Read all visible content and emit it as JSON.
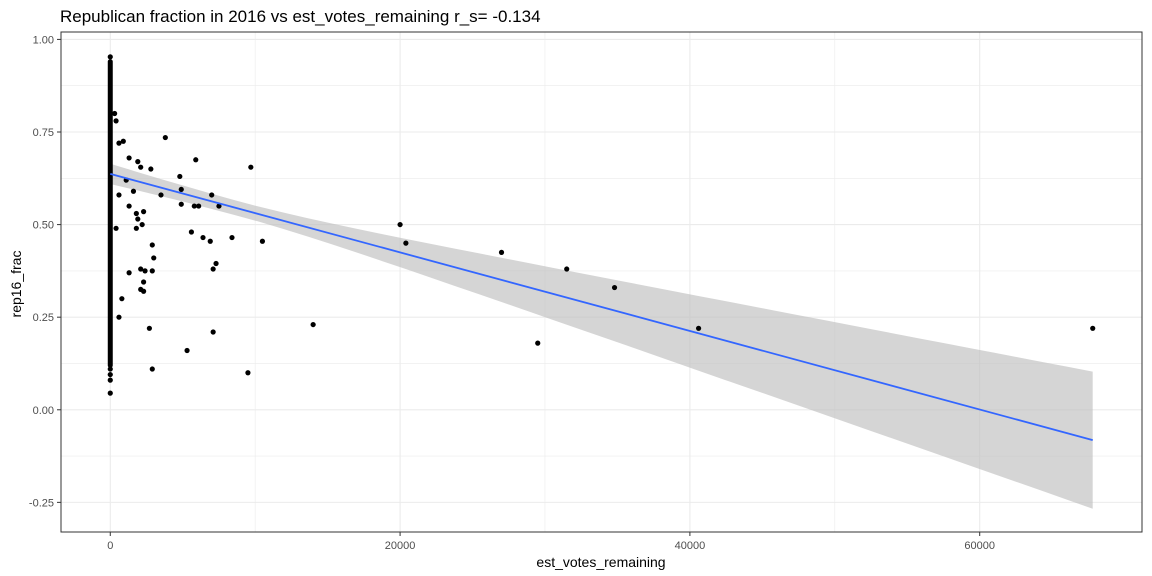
{
  "chart_data": {
    "type": "scatter",
    "title": "Republican fraction in 2016 vs est_votes_remaining  r_s= -0.134",
    "xlabel": "est_votes_remaining",
    "ylabel": "rep16_frac",
    "xlim": [
      -3400,
      71200
    ],
    "ylim": [
      -0.33,
      1.02
    ],
    "x_ticks": [
      0,
      20000,
      40000,
      60000
    ],
    "x_tick_labels": [
      "0",
      "20000",
      "40000",
      "60000"
    ],
    "y_ticks": [
      -0.25,
      0,
      0.25,
      0.5,
      0.75,
      1.0
    ],
    "y_tick_labels": [
      "-0.25",
      "0.00",
      "0.25",
      "0.50",
      "0.75",
      "1.00"
    ],
    "grid": true,
    "legend": "none",
    "colors": {
      "points": "#000000",
      "fit_line": "#3366FF",
      "ribbon": "#BFBFBF",
      "grid": "#EBEBEB",
      "panel_border": "#333333"
    },
    "zero_column": {
      "x": 0,
      "y_min": 0.12,
      "y_max": 0.94,
      "extra_y": [
        0.953,
        0.11,
        0.095,
        0.08,
        0.045
      ]
    },
    "points": [
      {
        "x": 300,
        "y": 0.8
      },
      {
        "x": 400,
        "y": 0.78
      },
      {
        "x": 600,
        "y": 0.72
      },
      {
        "x": 900,
        "y": 0.725
      },
      {
        "x": 600,
        "y": 0.58
      },
      {
        "x": 1100,
        "y": 0.62
      },
      {
        "x": 1300,
        "y": 0.68
      },
      {
        "x": 1300,
        "y": 0.55
      },
      {
        "x": 1600,
        "y": 0.59
      },
      {
        "x": 1900,
        "y": 0.67
      },
      {
        "x": 2100,
        "y": 0.655
      },
      {
        "x": 2800,
        "y": 0.65
      },
      {
        "x": 3800,
        "y": 0.735
      },
      {
        "x": 5900,
        "y": 0.675
      },
      {
        "x": 1800,
        "y": 0.53
      },
      {
        "x": 2300,
        "y": 0.535
      },
      {
        "x": 1900,
        "y": 0.515
      },
      {
        "x": 1800,
        "y": 0.49
      },
      {
        "x": 2200,
        "y": 0.5
      },
      {
        "x": 400,
        "y": 0.49
      },
      {
        "x": 2900,
        "y": 0.445
      },
      {
        "x": 3000,
        "y": 0.41
      },
      {
        "x": 1300,
        "y": 0.37
      },
      {
        "x": 2100,
        "y": 0.38
      },
      {
        "x": 2400,
        "y": 0.375
      },
      {
        "x": 2900,
        "y": 0.375
      },
      {
        "x": 2300,
        "y": 0.345
      },
      {
        "x": 2100,
        "y": 0.325
      },
      {
        "x": 2300,
        "y": 0.32
      },
      {
        "x": 800,
        "y": 0.3
      },
      {
        "x": 600,
        "y": 0.25
      },
      {
        "x": 2700,
        "y": 0.22
      },
      {
        "x": 2900,
        "y": 0.11
      },
      {
        "x": 3500,
        "y": 0.58
      },
      {
        "x": 4900,
        "y": 0.595
      },
      {
        "x": 4800,
        "y": 0.63
      },
      {
        "x": 4900,
        "y": 0.555
      },
      {
        "x": 5800,
        "y": 0.55
      },
      {
        "x": 6100,
        "y": 0.55
      },
      {
        "x": 7000,
        "y": 0.58
      },
      {
        "x": 7500,
        "y": 0.55
      },
      {
        "x": 9700,
        "y": 0.655
      },
      {
        "x": 5600,
        "y": 0.48
      },
      {
        "x": 6400,
        "y": 0.465
      },
      {
        "x": 6900,
        "y": 0.455
      },
      {
        "x": 8400,
        "y": 0.465
      },
      {
        "x": 10500,
        "y": 0.455
      },
      {
        "x": 7300,
        "y": 0.395
      },
      {
        "x": 7100,
        "y": 0.38
      },
      {
        "x": 7100,
        "y": 0.21
      },
      {
        "x": 5300,
        "y": 0.16
      },
      {
        "x": 9500,
        "y": 0.1
      },
      {
        "x": 14000,
        "y": 0.23
      },
      {
        "x": 20000,
        "y": 0.5
      },
      {
        "x": 20400,
        "y": 0.45
      },
      {
        "x": 27000,
        "y": 0.425
      },
      {
        "x": 31500,
        "y": 0.38
      },
      {
        "x": 34800,
        "y": 0.33
      },
      {
        "x": 29500,
        "y": 0.18
      },
      {
        "x": 40600,
        "y": 0.22
      },
      {
        "x": 67800,
        "y": 0.22
      }
    ],
    "fit": {
      "method": "linear",
      "x": [
        0,
        67800
      ],
      "y": [
        0.637,
        -0.082
      ],
      "ci_lower": [
        0.61,
        -0.27
      ],
      "ci_upper": [
        0.665,
        0.1
      ]
    }
  }
}
